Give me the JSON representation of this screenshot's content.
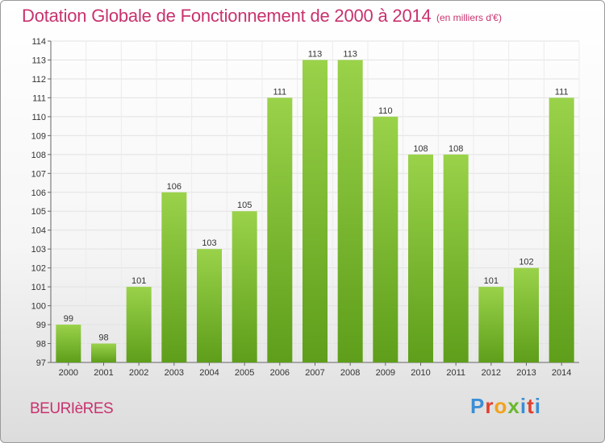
{
  "chart_data": {
    "type": "bar",
    "title": "Dotation Globale de Fonctionnement de 2000 à 2014",
    "subtitle": "(en milliers d'€)",
    "categories": [
      "2000",
      "2001",
      "2002",
      "2003",
      "2004",
      "2005",
      "2006",
      "2007",
      "2008",
      "2009",
      "2010",
      "2011",
      "2012",
      "2013",
      "2014"
    ],
    "values": [
      99,
      98,
      101,
      106,
      103,
      105,
      111,
      113,
      113,
      110,
      108,
      108,
      101,
      102,
      111
    ],
    "ylim": [
      97,
      114
    ],
    "yticks": [
      97,
      98,
      99,
      100,
      101,
      102,
      103,
      104,
      105,
      106,
      107,
      108,
      109,
      110,
      111,
      112,
      113,
      114
    ],
    "xlabel": "",
    "ylabel": "",
    "grid": true,
    "bar_color": "#7cbf2f"
  },
  "commune": "BEURIèRES",
  "logo": "Proxiti"
}
